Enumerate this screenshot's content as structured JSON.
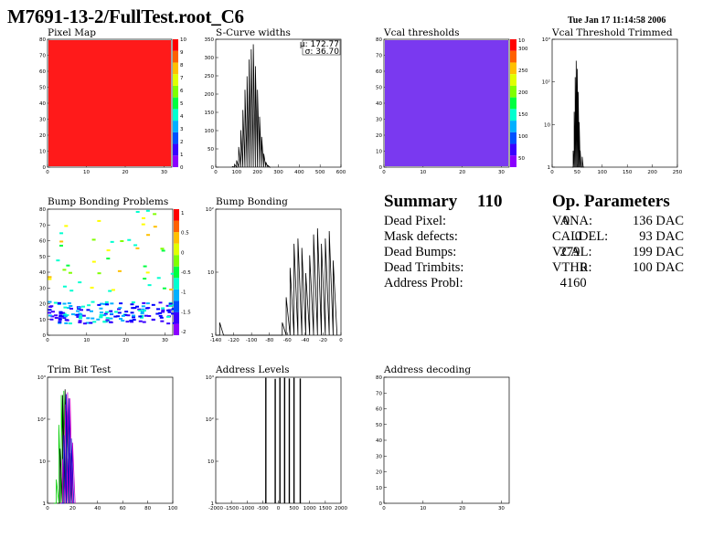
{
  "header": {
    "title": "M7691-13-2/FullTest.root_C6",
    "date": "Tue Jan 17 11:14:58 2006"
  },
  "panels": {
    "pixel_map": "Pixel Map",
    "scurve": "S-Curve widths",
    "vcal": "Vcal thresholds",
    "vcal_trim": "Vcal Threshold Trimmed",
    "bump_problems": "Bump Bonding Problems",
    "bump": "Bump Bonding",
    "trim_bit": "Trim Bit Test",
    "addr_levels": "Address Levels",
    "addr_decoding": "Address decoding"
  },
  "stats": {
    "mu_label": "μ: 172.77",
    "sigma_label": "σ: 36.70"
  },
  "summary": {
    "title": "Summary",
    "total": "110",
    "rows": [
      {
        "label": "Dead Pixel:",
        "value": "0"
      },
      {
        "label": "Mask defects:",
        "value": "0"
      },
      {
        "label": "Dead Bumps:",
        "value": "279"
      },
      {
        "label": "Dead Trimbits:",
        "value": "0"
      },
      {
        "label": "Address Probl:",
        "value": "4160"
      }
    ]
  },
  "op_params": {
    "title": "Op. Parameters",
    "rows": [
      {
        "label": "VANA:",
        "value": "136 DAC"
      },
      {
        "label": "CALDEL:",
        "value": "93 DAC"
      },
      {
        "label": "VCAL:",
        "value": "199 DAC"
      },
      {
        "label": "VTHR:",
        "value": "100 DAC"
      }
    ]
  },
  "chart_data": [
    {
      "name_ref": "pixel_map",
      "type": "heatmap",
      "xlim": [
        0,
        32
      ],
      "ylim": [
        0,
        80
      ],
      "xticks": [
        "0",
        "10",
        "20",
        "30"
      ],
      "yticks": [
        "0",
        "10",
        "20",
        "30",
        "40",
        "50",
        "60",
        "70",
        "80"
      ],
      "zticks": [
        "0",
        "1",
        "2",
        "3",
        "4",
        "5",
        "6",
        "7",
        "8",
        "9",
        "10"
      ],
      "uniform_value": 10,
      "fill_color": "#ff1a1a"
    },
    {
      "name_ref": "scurve",
      "type": "bar",
      "xlim": [
        0,
        600
      ],
      "ylim": [
        0,
        380
      ],
      "xticks": [
        "0",
        "100",
        "200",
        "300",
        "400",
        "500",
        "600"
      ],
      "yticks": [
        "0",
        "50",
        "100",
        "150",
        "200",
        "250",
        "300",
        "350"
      ],
      "x": [
        80,
        90,
        100,
        110,
        120,
        130,
        140,
        150,
        160,
        170,
        180,
        190,
        200,
        210,
        220,
        230,
        240,
        250,
        260
      ],
      "values": [
        2,
        8,
        20,
        60,
        110,
        170,
        230,
        270,
        320,
        350,
        365,
        300,
        230,
        150,
        90,
        40,
        15,
        5,
        1
      ]
    },
    {
      "name_ref": "vcal",
      "type": "heatmap",
      "xlim": [
        0,
        32
      ],
      "ylim": [
        0,
        80
      ],
      "xticks": [
        "0",
        "10",
        "20",
        "30"
      ],
      "yticks": [
        "0",
        "10",
        "20",
        "30",
        "40",
        "50",
        "60",
        "70",
        "80"
      ],
      "zticks": [
        "50",
        "100",
        "150",
        "200",
        "250",
        "300",
        "10"
      ],
      "fill_color": "#7a39f0"
    },
    {
      "name_ref": "vcal_trim",
      "type": "bar",
      "log_y": true,
      "xlim": [
        0,
        250
      ],
      "xticks": [
        "0",
        "50",
        "100",
        "150",
        "200",
        "250"
      ],
      "yticks": [
        "1",
        "10",
        "10²",
        "10³"
      ],
      "x": [
        40,
        42,
        44,
        46,
        48,
        50,
        52,
        54,
        56,
        58,
        60,
        62,
        64
      ],
      "values": [
        1,
        3,
        40,
        400,
        1200,
        700,
        150,
        20,
        3,
        1,
        2,
        1,
        1
      ]
    },
    {
      "name_ref": "bump_problems",
      "type": "heatmap",
      "xlim": [
        0,
        32
      ],
      "ylim": [
        0,
        80
      ],
      "xticks": [
        "0",
        "10",
        "20",
        "30"
      ],
      "yticks": [
        "0",
        "10",
        "20",
        "30",
        "40",
        "50",
        "60",
        "70",
        "80"
      ],
      "zticks": [
        "1",
        "0.5",
        "0",
        "-0.5",
        "-1",
        "-1.5",
        "-2"
      ],
      "band_y": [
        8,
        22
      ]
    },
    {
      "name_ref": "bump",
      "type": "line",
      "log_y": true,
      "xlim": [
        -150,
        10
      ],
      "xticks": [
        "-140",
        "-120",
        "-100",
        "-80",
        "-60",
        "-40",
        "-20",
        "0"
      ],
      "yticks": [
        "1",
        "10",
        "10²"
      ],
      "x": [
        -150,
        -145,
        -140,
        -135,
        -120,
        -100,
        -80,
        -70,
        -65,
        -60,
        -55,
        -50,
        -45,
        -40,
        -35,
        -30,
        -25,
        -20,
        -15,
        -10,
        -5,
        0,
        5
      ],
      "values": [
        1,
        2,
        1,
        1,
        1,
        1,
        1,
        1,
        2,
        8,
        40,
        150,
        200,
        120,
        30,
        80,
        250,
        350,
        150,
        200,
        300,
        60,
        1
      ]
    },
    {
      "name_ref": "trim_bit",
      "type": "line",
      "log_y": true,
      "xlim": [
        0,
        100
      ],
      "xticks": [
        "0",
        "20",
        "40",
        "60",
        "80",
        "100"
      ],
      "yticks": [
        "1",
        "10",
        "10²",
        "10³"
      ],
      "series": [
        {
          "color": "#00cc00",
          "x": [
            5,
            7,
            9,
            11,
            13,
            15,
            17,
            19
          ],
          "values": [
            1,
            5,
            200,
            1500,
            2000,
            500,
            20,
            1
          ]
        },
        {
          "color": "#000000",
          "x": [
            8,
            10,
            12,
            14,
            16,
            18,
            20
          ],
          "values": [
            1,
            40,
            1500,
            2200,
            800,
            30,
            1
          ]
        },
        {
          "color": "#cc00cc",
          "x": [
            10,
            12,
            14,
            16,
            18,
            20,
            22
          ],
          "values": [
            1,
            20,
            800,
            1800,
            1200,
            60,
            1
          ]
        },
        {
          "color": "#0000cc",
          "x": [
            11,
            13,
            15,
            17,
            19,
            21
          ],
          "values": [
            1,
            100,
            1600,
            1200,
            80,
            1
          ]
        }
      ]
    },
    {
      "name_ref": "addr_levels",
      "type": "bar",
      "log_y": true,
      "xlim": [
        -2000,
        2000
      ],
      "xticks": [
        "-2000",
        "-1500",
        "-1000",
        "-500",
        "0",
        "500",
        "1000",
        "1500",
        "2000"
      ],
      "yticks": [
        "1",
        "10",
        "10²",
        "10³"
      ],
      "x": [
        -400,
        -100,
        50,
        200,
        350,
        500,
        700
      ],
      "values": [
        4800,
        4500,
        4800,
        4800,
        4600,
        4800,
        4600
      ]
    },
    {
      "name_ref": "addr_decoding",
      "type": "heatmap",
      "xlim": [
        0,
        32
      ],
      "ylim": [
        0,
        80
      ],
      "xticks": [
        "0",
        "10",
        "20",
        "30"
      ],
      "yticks": [
        "0",
        "10",
        "20",
        "30",
        "40",
        "50",
        "60",
        "70",
        "80"
      ]
    }
  ]
}
